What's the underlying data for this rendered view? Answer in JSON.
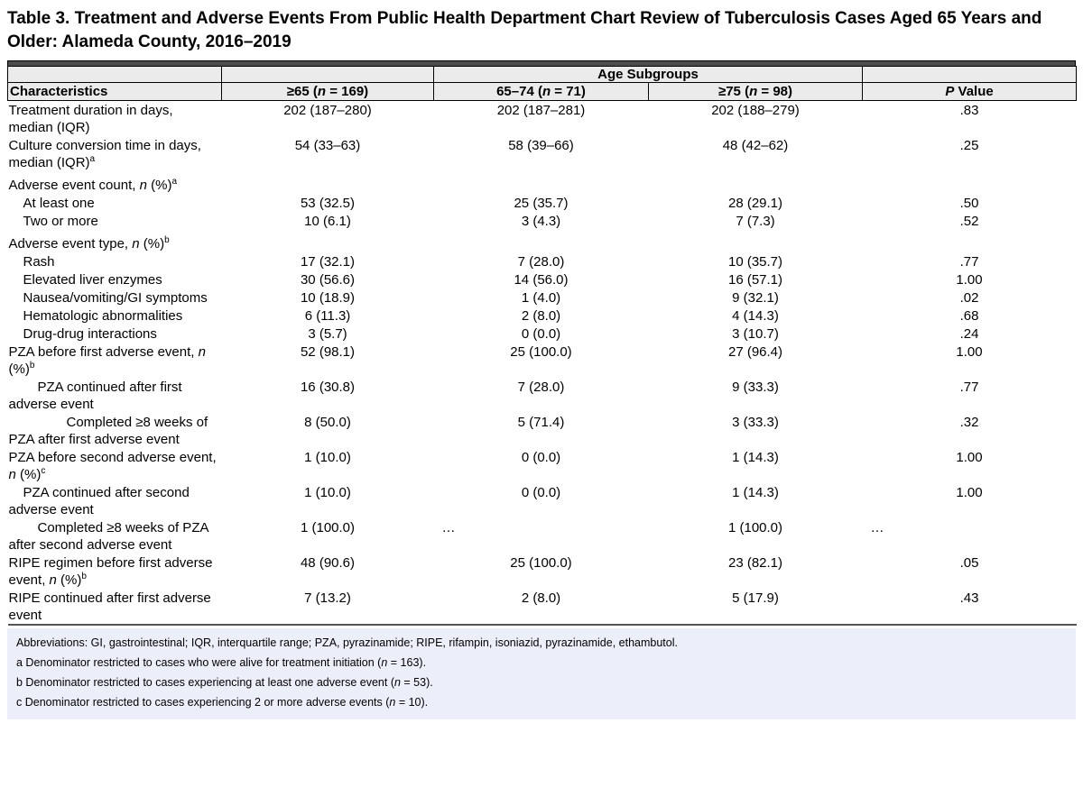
{
  "title": "Table 3. Treatment and Adverse Events From Public Health Department Chart Review of Tuberculosis Cases Aged 65 Years and Older: Alameda County, 2016–2019",
  "colors": {
    "header_fill": "#ebebeb",
    "top_bar": "#4c4c4c",
    "footnote_fill": "#eceef9",
    "border": "#000000",
    "body_bottom_rule": "#555555",
    "text": "#000000"
  },
  "table": {
    "span_header": "Age Subgroups",
    "columns": [
      "Characteristics",
      "≥65 (*n* = 169)",
      "65–74 (*n* = 71)",
      "≥75 (*n* = 98)",
      "*P* Value"
    ],
    "rows": [
      {
        "label": "Treatment duration in days, median (IQR)",
        "indent": 0,
        "group": false,
        "values": [
          "202 (187–280)",
          "202 (187–281)",
          "202 (188–279)",
          ".83"
        ]
      },
      {
        "label": "Culture conversion time in days, median (IQR)^a^",
        "indent": 0,
        "group": false,
        "values": [
          "54 (33–63)",
          "58 (39–66)",
          "48 (42–62)",
          ".25"
        ]
      },
      {
        "label": "Adverse event count, *n* (%)^a^",
        "indent": 0,
        "group": true,
        "values": [
          "",
          "",
          "",
          ""
        ]
      },
      {
        "label": "At least one",
        "indent": 1,
        "group": false,
        "values": [
          "53 (32.5)",
          "25 (35.7)",
          "28 (29.1)",
          ".50"
        ]
      },
      {
        "label": "Two or more",
        "indent": 1,
        "group": false,
        "values": [
          "10 (6.1)",
          "3 (4.3)",
          "7 (7.3)",
          ".52"
        ]
      },
      {
        "label": "Adverse event type, *n* (%)^b^",
        "indent": 0,
        "group": true,
        "values": [
          "",
          "",
          "",
          ""
        ]
      },
      {
        "label": "Rash",
        "indent": 1,
        "group": false,
        "values": [
          "17 (32.1)",
          "7 (28.0)",
          "10 (35.7)",
          ".77"
        ]
      },
      {
        "label": "Elevated liver enzymes",
        "indent": 1,
        "group": false,
        "values": [
          "30 (56.6)",
          "14 (56.0)",
          "16 (57.1)",
          "1.00"
        ]
      },
      {
        "label": "Nausea/vomiting/GI symptoms",
        "indent": 1,
        "group": false,
        "values": [
          "10 (18.9)",
          "1 (4.0)",
          "9 (32.1)",
          ".02"
        ]
      },
      {
        "label": "Hematologic abnormalities",
        "indent": 1,
        "group": false,
        "values": [
          "6 (11.3)",
          "2 (8.0)",
          "4 (14.3)",
          ".68"
        ]
      },
      {
        "label": "Drug-drug interactions",
        "indent": 1,
        "group": false,
        "values": [
          "3 (5.7)",
          "0 (0.0)",
          "3 (10.7)",
          ".24"
        ]
      },
      {
        "label": "PZA before first adverse event, *n* (%)^b^",
        "indent": 0,
        "group": false,
        "values": [
          "52 (98.1)",
          "25 (100.0)",
          "27 (96.4)",
          "1.00"
        ]
      },
      {
        "label": "PZA continued after first adverse event",
        "indent": 2,
        "group": false,
        "values": [
          "16 (30.8)",
          "7 (28.0)",
          "9 (33.3)",
          ".77"
        ]
      },
      {
        "label": "Completed ≥8 weeks of PZA after first adverse event",
        "indent": 3,
        "group": false,
        "values": [
          "8 (50.0)",
          "5 (71.4)",
          "3 (33.3)",
          ".32"
        ]
      },
      {
        "label": "PZA before second adverse event, *n* (%)^c^",
        "indent": 0,
        "group": false,
        "values": [
          "1 (10.0)",
          "0 (0.0)",
          "1 (14.3)",
          "1.00"
        ]
      },
      {
        "label": "PZA continued after second adverse event",
        "indent": 1,
        "group": false,
        "values": [
          "1 (10.0)",
          "0 (0.0)",
          "1 (14.3)",
          "1.00"
        ]
      },
      {
        "label": "Completed ≥8 weeks of PZA after second adverse event",
        "indent": 2,
        "group": false,
        "values": [
          "1 (100.0)",
          "…",
          "1 (100.0)",
          "…"
        ]
      },
      {
        "label": "RIPE regimen before first adverse event, *n* (%)^b^",
        "indent": 0,
        "group": false,
        "values": [
          "48 (90.6)",
          "25 (100.0)",
          "23 (82.1)",
          ".05"
        ]
      },
      {
        "label": "RIPE continued after first adverse event",
        "indent": 0,
        "group": false,
        "values": [
          "7 (13.2)",
          "2 (8.0)",
          "5 (17.9)",
          ".43"
        ]
      }
    ],
    "footnotes": [
      "Abbreviations: GI, gastrointestinal; IQR, interquartile range; PZA, pyrazinamide; RIPE, rifampin, isoniazid, pyrazinamide, ethambutol.",
      "a Denominator restricted to cases who were alive for treatment initiation (*n* = 163).",
      "b Denominator restricted to cases experiencing at least one adverse event (*n* = 53).",
      "c Denominator restricted to cases experiencing 2 or more adverse events (*n* = 10)."
    ]
  }
}
